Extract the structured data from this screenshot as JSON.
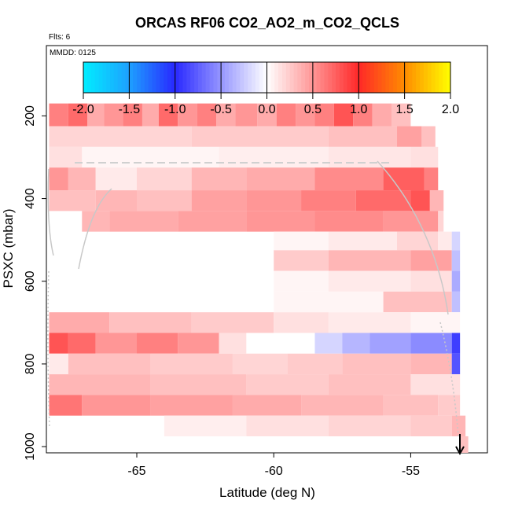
{
  "chart_data": {
    "type": "heatmap",
    "title": "ORCAS RF06 CO2_AO2_m_CO2_QCLS",
    "flights_label": "Flts: 6",
    "date_label": "MMDD: 0125",
    "xlabel": "Latitude (deg N)",
    "ylabel": "PSXC (mbar)",
    "xlim": [
      -68.3,
      -52.2
    ],
    "ylim": [
      1015,
      30
    ],
    "x_ticks": [
      -65,
      -60,
      -55
    ],
    "y_ticks": [
      200,
      400,
      600,
      800,
      1000
    ],
    "colorbar": {
      "range": [
        -2.0,
        2.0
      ],
      "ticks": [
        "-2.0",
        "-1.5",
        "-1.0",
        "-0.5",
        "0.0",
        "0.5",
        "1.0",
        "1.5",
        "2.0"
      ]
    },
    "bands": [
      {
        "p": [
          170,
          225
        ],
        "cells": [
          [
            -68.2,
            -67.5,
            0.6
          ],
          [
            -67.5,
            -66.8,
            0.7
          ],
          [
            -66.8,
            -66.2,
            0.4
          ],
          [
            -66.2,
            -65.5,
            0.5
          ],
          [
            -65.5,
            -64.8,
            0.6
          ],
          [
            -64.8,
            -64.2,
            0.4
          ],
          [
            -64.2,
            -63.5,
            0.7
          ],
          [
            -63.5,
            -62.8,
            0.5
          ],
          [
            -62.8,
            -62.1,
            0.6
          ],
          [
            -62.1,
            -61.4,
            0.4
          ],
          [
            -61.4,
            -60.6,
            0.5
          ],
          [
            -60.6,
            -59.9,
            0.4
          ],
          [
            -59.9,
            -59.2,
            0.6
          ],
          [
            -59.2,
            -58.5,
            0.5
          ],
          [
            -58.5,
            -57.8,
            0.6
          ],
          [
            -57.8,
            -57.1,
            0.8
          ],
          [
            -57.1,
            -56.4,
            0.6
          ],
          [
            -56.4,
            -55.7,
            0.4
          ],
          [
            -55.7,
            -55.0,
            0.3
          ]
        ]
      },
      {
        "p": [
          225,
          275
        ],
        "cells": [
          [
            -68.2,
            -63.0,
            0.2
          ],
          [
            -63.0,
            -58.0,
            0.25
          ],
          [
            -58.0,
            -55.5,
            0.3
          ],
          [
            -55.5,
            -54.6,
            0.45
          ],
          [
            -54.6,
            -54.1,
            0.3
          ]
        ]
      },
      {
        "p": [
          275,
          325
        ],
        "cells": [
          [
            -68.2,
            -67.0,
            0.15
          ],
          [
            -67.0,
            -62.0,
            0.05
          ],
          [
            -62.0,
            -58.0,
            0.08
          ],
          [
            -58.0,
            -55.0,
            0.12
          ],
          [
            -55.0,
            -54.0,
            0.15
          ]
        ]
      },
      {
        "p": [
          325,
          380
        ],
        "cells": [
          [
            -68.2,
            -67.5,
            0.5
          ],
          [
            -67.5,
            -66.5,
            0.35
          ],
          [
            -66.5,
            -65.0,
            0.1
          ],
          [
            -65.0,
            -63.0,
            0.2
          ],
          [
            -63.0,
            -61.0,
            0.35
          ],
          [
            -61.0,
            -58.5,
            0.4
          ],
          [
            -58.5,
            -56.0,
            0.55
          ],
          [
            -56.0,
            -54.5,
            0.75
          ],
          [
            -54.5,
            -54.0,
            0.6
          ]
        ]
      },
      {
        "p": [
          380,
          430
        ],
        "cells": [
          [
            -68.2,
            -66.5,
            0.3
          ],
          [
            -66.5,
            -65.0,
            0.35
          ],
          [
            -65.0,
            -63.0,
            0.3
          ],
          [
            -63.0,
            -61.0,
            0.45
          ],
          [
            -61.0,
            -59.0,
            0.5
          ],
          [
            -59.0,
            -57.0,
            0.6
          ],
          [
            -57.0,
            -55.0,
            0.7
          ],
          [
            -55.0,
            -54.3,
            0.8
          ],
          [
            -54.3,
            -53.8,
            0.35
          ]
        ]
      },
      {
        "p": [
          430,
          480
        ],
        "cells": [
          [
            -67.0,
            -66.0,
            0.35
          ],
          [
            -66.0,
            -63.5,
            0.4
          ],
          [
            -63.5,
            -61.0,
            0.45
          ],
          [
            -61.0,
            -58.5,
            0.5
          ],
          [
            -58.5,
            -56.0,
            0.55
          ],
          [
            -56.0,
            -54.0,
            0.5
          ],
          [
            -54.0,
            -53.8,
            0.2
          ]
        ]
      },
      {
        "p": [
          480,
          525
        ],
        "cells": [
          [
            -60.0,
            -58.0,
            0.05
          ],
          [
            -58.0,
            -55.5,
            0.1
          ],
          [
            -55.5,
            -54.0,
            0.2
          ],
          [
            -54.0,
            -53.5,
            0.1
          ],
          [
            -53.5,
            -53.2,
            -0.2
          ]
        ]
      },
      {
        "p": [
          525,
          575
        ],
        "cells": [
          [
            -60.0,
            -58.0,
            0.25
          ],
          [
            -58.0,
            -55.0,
            0.35
          ],
          [
            -55.0,
            -53.5,
            0.45
          ],
          [
            -53.5,
            -53.2,
            -0.3
          ]
        ]
      },
      {
        "p": [
          575,
          625
        ],
        "cells": [
          [
            -60.0,
            -58.0,
            0.05
          ],
          [
            -58.0,
            -55.0,
            0.1
          ],
          [
            -55.0,
            -53.5,
            0.15
          ],
          [
            -53.5,
            -53.2,
            -0.4
          ]
        ]
      },
      {
        "p": [
          625,
          675
        ],
        "cells": [
          [
            -60.0,
            -56.0,
            0.05
          ],
          [
            -56.0,
            -53.5,
            0.3
          ],
          [
            -53.5,
            -53.2,
            -0.3
          ]
        ]
      },
      {
        "p": [
          675,
          725
        ],
        "cells": [
          [
            -68.2,
            -66.0,
            0.4
          ],
          [
            -66.0,
            -63.0,
            0.3
          ],
          [
            -63.0,
            -60.0,
            0.25
          ],
          [
            -60.0,
            -58.0,
            0.15
          ],
          [
            -58.0,
            -55.0,
            0.1
          ],
          [
            -55.0,
            -53.2,
            0.05
          ]
        ]
      },
      {
        "p": [
          725,
          775
        ],
        "cells": [
          [
            -68.2,
            -67.5,
            0.8
          ],
          [
            -67.5,
            -66.5,
            0.7
          ],
          [
            -66.5,
            -65.0,
            0.5
          ],
          [
            -65.0,
            -63.5,
            0.6
          ],
          [
            -63.5,
            -62.0,
            0.5
          ],
          [
            -62.0,
            -61.0,
            0.15
          ],
          [
            -61.0,
            -58.5,
            0.0
          ],
          [
            -58.5,
            -57.5,
            -0.2
          ],
          [
            -57.5,
            -56.5,
            -0.35
          ],
          [
            -56.5,
            -55.0,
            -0.45
          ],
          [
            -55.0,
            -53.5,
            -0.55
          ],
          [
            -53.5,
            -53.2,
            -0.9
          ]
        ]
      },
      {
        "p": [
          775,
          825
        ],
        "cells": [
          [
            -68.2,
            -67.5,
            0.1
          ],
          [
            -67.5,
            -64.5,
            0.3
          ],
          [
            -64.5,
            -61.5,
            0.25
          ],
          [
            -61.5,
            -59.5,
            0.2
          ],
          [
            -59.5,
            -57.5,
            0.25
          ],
          [
            -57.5,
            -55.0,
            0.3
          ],
          [
            -55.0,
            -53.5,
            0.35
          ],
          [
            -53.5,
            -53.2,
            -0.8
          ]
        ]
      },
      {
        "p": [
          825,
          875
        ],
        "cells": [
          [
            -68.2,
            -64.5,
            0.35
          ],
          [
            -64.5,
            -61.0,
            0.3
          ],
          [
            -61.0,
            -58.0,
            0.25
          ],
          [
            -58.0,
            -55.0,
            0.3
          ],
          [
            -55.0,
            -53.2,
            0.15
          ]
        ]
      },
      {
        "p": [
          875,
          925
        ],
        "cells": [
          [
            -68.2,
            -67.0,
            0.65
          ],
          [
            -67.0,
            -64.5,
            0.5
          ],
          [
            -64.5,
            -61.5,
            0.45
          ],
          [
            -61.5,
            -59.0,
            0.4
          ],
          [
            -59.0,
            -56.0,
            0.35
          ],
          [
            -56.0,
            -54.0,
            0.3
          ],
          [
            -54.0,
            -53.2,
            0.25
          ]
        ]
      },
      {
        "p": [
          925,
          975
        ],
        "cells": [
          [
            -64.0,
            -61.0,
            0.08
          ],
          [
            -61.0,
            -58.0,
            0.15
          ],
          [
            -58.0,
            -55.0,
            0.2
          ],
          [
            -55.0,
            -53.5,
            0.25
          ],
          [
            -53.5,
            -53.0,
            0.35
          ]
        ]
      },
      {
        "p": [
          975,
          1015
        ],
        "cells": [
          [
            -53.2,
            -52.9,
            0.3
          ]
        ]
      }
    ]
  }
}
